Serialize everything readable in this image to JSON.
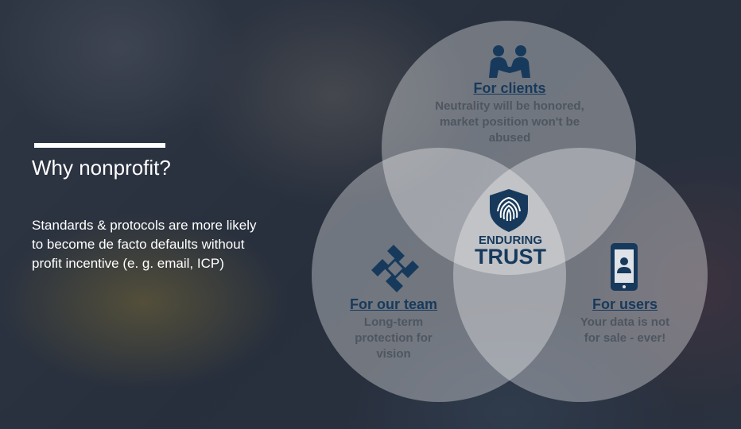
{
  "slide": {
    "title": "Why nonprofit?",
    "body": "Standards & protocols are more likely to become de facto defaults without profit incentive (e. g. email, ICP)"
  },
  "venn": {
    "center": {
      "line1": "ENDURING",
      "line2": "TRUST",
      "icon": "shield-fingerprint-icon"
    },
    "clients": {
      "heading": "For clients",
      "text": "Neutrality will be honored, market position won't be abused",
      "icon": "people-handshake-icon"
    },
    "team": {
      "heading": "For our team",
      "text": "Long-term protection for vision",
      "icon": "hands-together-icon"
    },
    "users": {
      "heading": "For users",
      "text": "Your data is not for sale - ever!",
      "icon": "smartphone-user-icon"
    }
  },
  "colors": {
    "accent": "#173a5c",
    "text_muted": "#4e5660",
    "white": "#ffffff"
  }
}
